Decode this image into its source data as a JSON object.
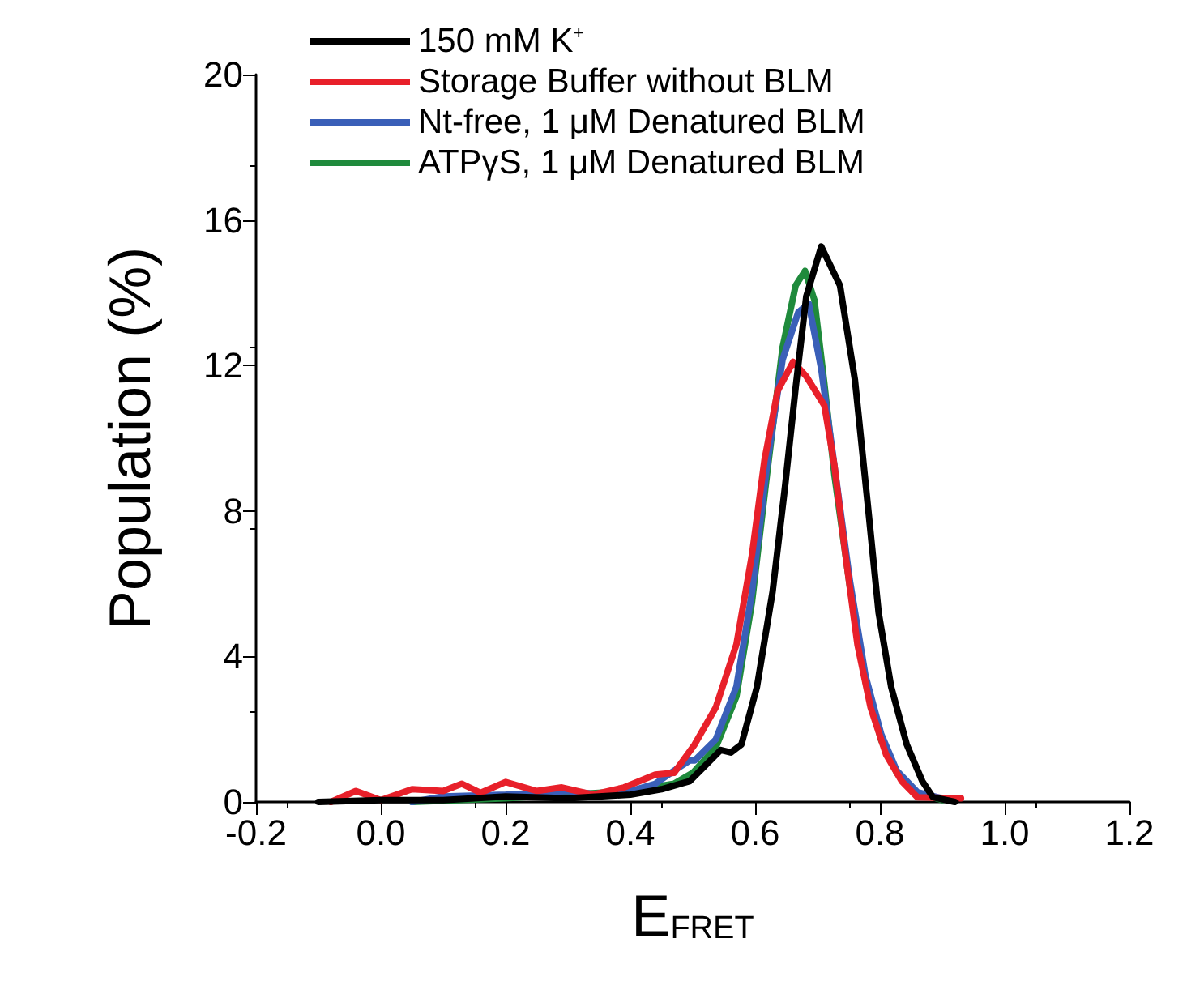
{
  "chart_data": {
    "type": "line",
    "xlabel": "E$_{FRET}$",
    "ylabel": "Population (%)",
    "xlim": [
      -0.2,
      1.2
    ],
    "xticks": [
      -0.2,
      {
        "value": 0,
        "label": "0.0"
      },
      0.2,
      0.4,
      0.6,
      0.8,
      {
        "value": 1,
        "label": "1.0"
      },
      1.2
    ],
    "ylim": [
      0,
      20
    ],
    "yticks": [
      0,
      4,
      8,
      12,
      16,
      20
    ],
    "grid": false,
    "legend": "top left",
    "marker": "none",
    "line_style": "solid",
    "series": [
      {
        "name": "150 mM K$^{+}$",
        "color": "#000000",
        "x": [
          -0.1,
          0.0,
          0.1,
          0.2,
          0.3,
          0.4,
          0.45,
          0.48,
          0.495,
          0.52,
          0.545,
          0.561,
          0.578,
          0.603,
          0.628,
          0.648,
          0.665,
          0.682,
          0.706,
          0.736,
          0.76,
          0.781,
          0.798,
          0.818,
          0.843,
          0.868,
          0.885,
          0.92
        ],
        "values": [
          0,
          0.05,
          0.05,
          0.15,
          0.1,
          0.2,
          0.35,
          0.5,
          0.57,
          1.0,
          1.43,
          1.36,
          1.58,
          3.17,
          5.78,
          8.68,
          11.4,
          13.9,
          15.27,
          14.2,
          11.6,
          8.1,
          5.2,
          3.17,
          1.58,
          0.57,
          0.13,
          0
        ]
      },
      {
        "name": "Storage Buffer without BLM",
        "color": "#e8202a",
        "x": [
          -0.08,
          -0.04,
          0.0,
          0.05,
          0.1,
          0.13,
          0.16,
          0.2,
          0.25,
          0.29,
          0.34,
          0.39,
          0.44,
          0.47,
          0.503,
          0.537,
          0.57,
          0.595,
          0.615,
          0.636,
          0.661,
          0.682,
          0.711,
          0.727,
          0.744,
          0.764,
          0.785,
          0.81,
          0.835,
          0.86,
          0.93
        ],
        "values": [
          0,
          0.3,
          0.05,
          0.35,
          0.3,
          0.5,
          0.25,
          0.55,
          0.3,
          0.4,
          0.2,
          0.4,
          0.75,
          0.8,
          1.58,
          2.6,
          4.33,
          6.8,
          9.4,
          11.3,
          12.1,
          11.7,
          10.9,
          9.26,
          6.9,
          4.33,
          2.6,
          1.3,
          0.57,
          0.13,
          0.1
        ]
      },
      {
        "name": "Nt-free, 1 μM Denatured BLM",
        "color": "#3a5fb8",
        "x": [
          0.05,
          0.1,
          0.2,
          0.3,
          0.35,
          0.4,
          0.44,
          0.47,
          0.495,
          0.503,
          0.537,
          0.57,
          0.595,
          0.619,
          0.644,
          0.669,
          0.686,
          0.706,
          0.727,
          0.752,
          0.777,
          0.802,
          0.827,
          0.86,
          0.9
        ],
        "values": [
          0,
          0.15,
          0.2,
          0.3,
          0.2,
          0.3,
          0.5,
          0.86,
          1.14,
          1.14,
          1.72,
          3.17,
          5.78,
          9.26,
          12.16,
          13.46,
          13.7,
          11.9,
          9.26,
          6.07,
          3.46,
          1.87,
          0.86,
          0.27,
          0.1
        ]
      },
      {
        "name": "ATPγS, 1 μM Denatured BLM",
        "color": "#1f8a3c",
        "x": [
          0.05,
          0.2,
          0.3,
          0.4,
          0.47,
          0.5,
          0.537,
          0.57,
          0.595,
          0.619,
          0.644,
          0.665,
          0.68,
          0.695,
          0.711,
          0.727,
          0.752,
          0.777,
          0.802,
          0.827,
          0.86,
          0.9
        ],
        "values": [
          0,
          0.1,
          0.2,
          0.3,
          0.5,
          0.8,
          1.5,
          2.9,
          5.5,
          9.0,
          12.5,
          14.2,
          14.6,
          13.8,
          11.5,
          9.0,
          5.9,
          3.3,
          1.7,
          0.8,
          0.25,
          0.05
        ]
      }
    ]
  }
}
